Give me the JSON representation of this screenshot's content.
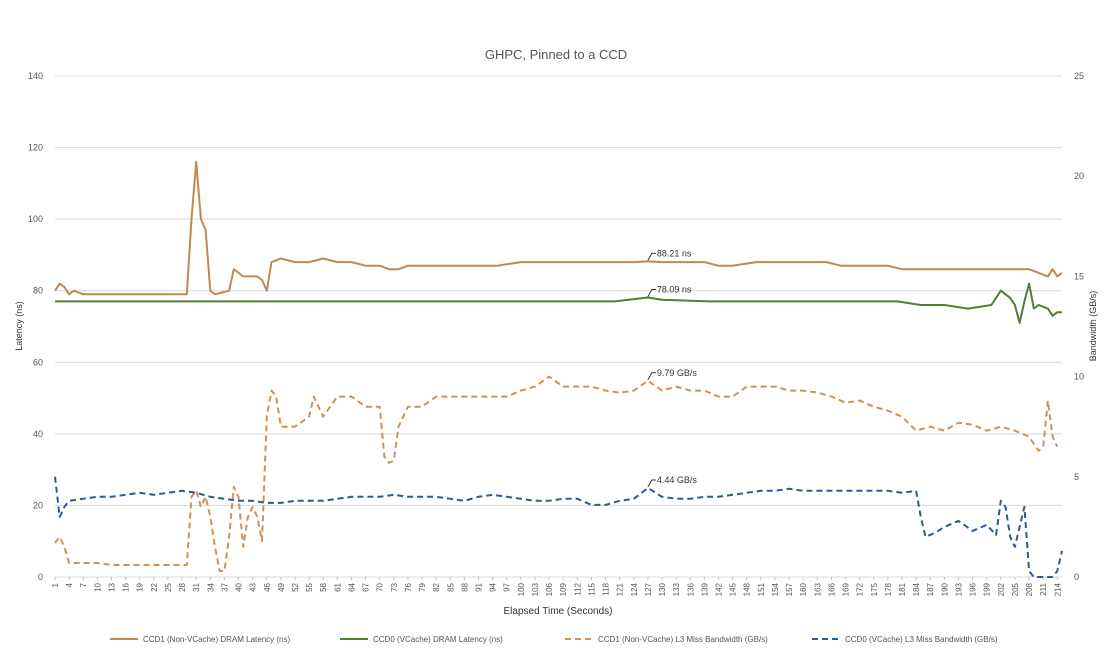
{
  "chart_data": {
    "type": "line",
    "title": "GHPC, Pinned to a CCD",
    "xlabel": "Elapsed Time (Seconds)",
    "ylabel": "Latency (ns)",
    "y2label": "Bandwidth (GB/s)",
    "ylim": [
      0,
      140
    ],
    "yticks": [
      0,
      20,
      40,
      60,
      80,
      100,
      120,
      140
    ],
    "y2lim": [
      0,
      25
    ],
    "y2ticks": [
      0,
      5,
      10,
      15,
      20,
      25
    ],
    "xlim": [
      1,
      215
    ],
    "x_tick_labels": [
      "1",
      "4",
      "7",
      "10",
      "13",
      "16",
      "19",
      "22",
      "25",
      "28",
      "31",
      "34",
      "37",
      "40",
      "43",
      "46",
      "49",
      "52",
      "55",
      "58",
      "61",
      "64",
      "67",
      "70",
      "73",
      "76",
      "79",
      "82",
      "85",
      "88",
      "91",
      "94",
      "97",
      "100",
      "103",
      "106",
      "109",
      "112",
      "115",
      "118",
      "121",
      "124",
      "127",
      "130",
      "133",
      "136",
      "139",
      "142",
      "145",
      "148",
      "151",
      "154",
      "157",
      "160",
      "163",
      "166",
      "169",
      "172",
      "175",
      "178",
      "181",
      "184",
      "187",
      "190",
      "193",
      "196",
      "199",
      "202",
      "205",
      "208",
      "211",
      "214"
    ],
    "grid": true,
    "legend_position": "bottom",
    "series": [
      {
        "name": "CCD1 (Non-VCache) DRAM Latency (ns)",
        "axis": "left",
        "color": "#c0894f",
        "dash": false,
        "points": [
          [
            1,
            80
          ],
          [
            2,
            82
          ],
          [
            3,
            81
          ],
          [
            4,
            79
          ],
          [
            5,
            80
          ],
          [
            7,
            79
          ],
          [
            10,
            79
          ],
          [
            13,
            79
          ],
          [
            16,
            79
          ],
          [
            19,
            79
          ],
          [
            22,
            79
          ],
          [
            25,
            79
          ],
          [
            28,
            79
          ],
          [
            29,
            79
          ],
          [
            30,
            100
          ],
          [
            31,
            116
          ],
          [
            32,
            100
          ],
          [
            33,
            97
          ],
          [
            34,
            80
          ],
          [
            35,
            79
          ],
          [
            38,
            80
          ],
          [
            39,
            86
          ],
          [
            41,
            84
          ],
          [
            44,
            84
          ],
          [
            45,
            83
          ],
          [
            46,
            80
          ],
          [
            47,
            88
          ],
          [
            49,
            89
          ],
          [
            52,
            88
          ],
          [
            55,
            88
          ],
          [
            58,
            89
          ],
          [
            61,
            88
          ],
          [
            64,
            88
          ],
          [
            67,
            87
          ],
          [
            70,
            87
          ],
          [
            72,
            86
          ],
          [
            74,
            86
          ],
          [
            76,
            87
          ],
          [
            80,
            87
          ],
          [
            85,
            87
          ],
          [
            90,
            87
          ],
          [
            95,
            87
          ],
          [
            100,
            88
          ],
          [
            105,
            88
          ],
          [
            110,
            88
          ],
          [
            115,
            88
          ],
          [
            120,
            88
          ],
          [
            124,
            88
          ],
          [
            127,
            88.2
          ],
          [
            130,
            88
          ],
          [
            135,
            88
          ],
          [
            139,
            88
          ],
          [
            142,
            87
          ],
          [
            145,
            87
          ],
          [
            150,
            88
          ],
          [
            155,
            88
          ],
          [
            160,
            88
          ],
          [
            165,
            88
          ],
          [
            168,
            87
          ],
          [
            170,
            87
          ],
          [
            175,
            87
          ],
          [
            178,
            87
          ],
          [
            181,
            86
          ],
          [
            185,
            86
          ],
          [
            190,
            86
          ],
          [
            195,
            86
          ],
          [
            200,
            86
          ],
          [
            205,
            86
          ],
          [
            208,
            86
          ],
          [
            210,
            85
          ],
          [
            212,
            84
          ],
          [
            213,
            86
          ],
          [
            214,
            84
          ],
          [
            215,
            85
          ]
        ]
      },
      {
        "name": "CCD0 (VCache) DRAM Latency (ns)",
        "axis": "left",
        "color": "#4e7f33",
        "dash": false,
        "points": [
          [
            1,
            77
          ],
          [
            10,
            77
          ],
          [
            20,
            77
          ],
          [
            30,
            77
          ],
          [
            40,
            77
          ],
          [
            50,
            77
          ],
          [
            60,
            77
          ],
          [
            70,
            77
          ],
          [
            80,
            77
          ],
          [
            90,
            77
          ],
          [
            100,
            77
          ],
          [
            110,
            77
          ],
          [
            120,
            77
          ],
          [
            127,
            78.1
          ],
          [
            130,
            77.5
          ],
          [
            140,
            77
          ],
          [
            150,
            77
          ],
          [
            160,
            77
          ],
          [
            170,
            77
          ],
          [
            180,
            77
          ],
          [
            185,
            76
          ],
          [
            190,
            76
          ],
          [
            195,
            75
          ],
          [
            200,
            76
          ],
          [
            202,
            80
          ],
          [
            204,
            78
          ],
          [
            205,
            76
          ],
          [
            206,
            71
          ],
          [
            207,
            77
          ],
          [
            208,
            82
          ],
          [
            209,
            75
          ],
          [
            210,
            76
          ],
          [
            212,
            75
          ],
          [
            213,
            73
          ],
          [
            214,
            74
          ],
          [
            215,
            74
          ]
        ]
      },
      {
        "name": "CCD1 (Non-VCache) L3 Miss Bandwidth (GB/s)",
        "axis": "right",
        "color": "#d09155",
        "dash": true,
        "points": [
          [
            1,
            1.7
          ],
          [
            2,
            2
          ],
          [
            3,
            1.5
          ],
          [
            4,
            0.7
          ],
          [
            7,
            0.7
          ],
          [
            10,
            0.7
          ],
          [
            13,
            0.6
          ],
          [
            16,
            0.6
          ],
          [
            19,
            0.6
          ],
          [
            22,
            0.6
          ],
          [
            25,
            0.6
          ],
          [
            28,
            0.6
          ],
          [
            29,
            0.6
          ],
          [
            30,
            4
          ],
          [
            31,
            4.3
          ],
          [
            32,
            3.5
          ],
          [
            33,
            4
          ],
          [
            34,
            3
          ],
          [
            35,
            1.5
          ],
          [
            36,
            0.3
          ],
          [
            37,
            0.3
          ],
          [
            38,
            2
          ],
          [
            39,
            4.5
          ],
          [
            40,
            4
          ],
          [
            41,
            1.5
          ],
          [
            42,
            3
          ],
          [
            43,
            3.5
          ],
          [
            44,
            3
          ],
          [
            45,
            1.8
          ],
          [
            46,
            8
          ],
          [
            47,
            9.3
          ],
          [
            48,
            9
          ],
          [
            49,
            7.5
          ],
          [
            52,
            7.5
          ],
          [
            55,
            8
          ],
          [
            56,
            9
          ],
          [
            58,
            8
          ],
          [
            61,
            9
          ],
          [
            64,
            9
          ],
          [
            67,
            8.5
          ],
          [
            70,
            8.5
          ],
          [
            71,
            6
          ],
          [
            72,
            5.7
          ],
          [
            73,
            5.8
          ],
          [
            74,
            7.5
          ],
          [
            76,
            8.5
          ],
          [
            79,
            8.5
          ],
          [
            82,
            9
          ],
          [
            85,
            9
          ],
          [
            88,
            9
          ],
          [
            91,
            9
          ],
          [
            94,
            9
          ],
          [
            97,
            9
          ],
          [
            100,
            9.3
          ],
          [
            103,
            9.5
          ],
          [
            106,
            10
          ],
          [
            109,
            9.5
          ],
          [
            112,
            9.5
          ],
          [
            115,
            9.5
          ],
          [
            118,
            9.3
          ],
          [
            121,
            9.2
          ],
          [
            124,
            9.3
          ],
          [
            127,
            9.79
          ],
          [
            130,
            9.3
          ],
          [
            133,
            9.5
          ],
          [
            136,
            9.3
          ],
          [
            139,
            9.3
          ],
          [
            142,
            9
          ],
          [
            145,
            9
          ],
          [
            148,
            9.5
          ],
          [
            151,
            9.5
          ],
          [
            154,
            9.5
          ],
          [
            157,
            9.3
          ],
          [
            160,
            9.3
          ],
          [
            163,
            9.2
          ],
          [
            166,
            9
          ],
          [
            169,
            8.7
          ],
          [
            172,
            8.8
          ],
          [
            175,
            8.5
          ],
          [
            178,
            8.3
          ],
          [
            181,
            8
          ],
          [
            184,
            7.3
          ],
          [
            187,
            7.5
          ],
          [
            190,
            7.3
          ],
          [
            193,
            7.7
          ],
          [
            196,
            7.6
          ],
          [
            199,
            7.3
          ],
          [
            202,
            7.5
          ],
          [
            205,
            7.3
          ],
          [
            208,
            7
          ],
          [
            210,
            6.3
          ],
          [
            211,
            6.5
          ],
          [
            212,
            8.8
          ],
          [
            213,
            7
          ],
          [
            214,
            6.5
          ]
        ]
      },
      {
        "name": "CCD0 (VCache) L3 Miss Bandwidth (GB/s)",
        "axis": "right",
        "color": "#2e5a8e",
        "dash": true,
        "points": [
          [
            1,
            5
          ],
          [
            2,
            3
          ],
          [
            3,
            3.5
          ],
          [
            4,
            3.8
          ],
          [
            7,
            3.9
          ],
          [
            10,
            4
          ],
          [
            13,
            4
          ],
          [
            16,
            4.1
          ],
          [
            19,
            4.2
          ],
          [
            22,
            4.1
          ],
          [
            25,
            4.2
          ],
          [
            28,
            4.3
          ],
          [
            31,
            4.2
          ],
          [
            34,
            4
          ],
          [
            37,
            3.9
          ],
          [
            40,
            3.8
          ],
          [
            43,
            3.8
          ],
          [
            46,
            3.7
          ],
          [
            49,
            3.7
          ],
          [
            52,
            3.8
          ],
          [
            55,
            3.8
          ],
          [
            58,
            3.8
          ],
          [
            61,
            3.9
          ],
          [
            64,
            4
          ],
          [
            67,
            4
          ],
          [
            70,
            4
          ],
          [
            73,
            4.1
          ],
          [
            76,
            4
          ],
          [
            79,
            4
          ],
          [
            82,
            4
          ],
          [
            85,
            3.9
          ],
          [
            88,
            3.8
          ],
          [
            91,
            4
          ],
          [
            94,
            4.1
          ],
          [
            97,
            4
          ],
          [
            100,
            3.9
          ],
          [
            103,
            3.8
          ],
          [
            106,
            3.8
          ],
          [
            109,
            3.9
          ],
          [
            112,
            3.9
          ],
          [
            115,
            3.6
          ],
          [
            118,
            3.6
          ],
          [
            121,
            3.8
          ],
          [
            124,
            3.9
          ],
          [
            127,
            4.44
          ],
          [
            130,
            4
          ],
          [
            133,
            3.9
          ],
          [
            136,
            3.9
          ],
          [
            139,
            4
          ],
          [
            142,
            4
          ],
          [
            145,
            4.1
          ],
          [
            148,
            4.2
          ],
          [
            151,
            4.3
          ],
          [
            154,
            4.3
          ],
          [
            157,
            4.4
          ],
          [
            160,
            4.3
          ],
          [
            163,
            4.3
          ],
          [
            166,
            4.3
          ],
          [
            169,
            4.3
          ],
          [
            172,
            4.3
          ],
          [
            175,
            4.3
          ],
          [
            178,
            4.3
          ],
          [
            181,
            4.2
          ],
          [
            184,
            4.3
          ],
          [
            185,
            3
          ],
          [
            186,
            2
          ],
          [
            188,
            2.2
          ],
          [
            190,
            2.5
          ],
          [
            193,
            2.8
          ],
          [
            196,
            2.3
          ],
          [
            199,
            2.6
          ],
          [
            201,
            2.1
          ],
          [
            202,
            3.8
          ],
          [
            203,
            3.5
          ],
          [
            204,
            2
          ],
          [
            205,
            1.5
          ],
          [
            206,
            2.5
          ],
          [
            207,
            3.5
          ],
          [
            208,
            0.3
          ],
          [
            209,
            0
          ],
          [
            211,
            0
          ],
          [
            213,
            0
          ],
          [
            214,
            0.3
          ],
          [
            215,
            1.3
          ]
        ]
      }
    ],
    "annotations": [
      {
        "text": "88.21 ns",
        "series": 0,
        "x": 127,
        "y": 88.21
      },
      {
        "text": "78.09 ns",
        "series": 1,
        "x": 127,
        "y": 78.09
      },
      {
        "text": "9.79 GB/s",
        "series": 2,
        "x": 127,
        "y": 9.79
      },
      {
        "text": "4.44 GB/s",
        "series": 3,
        "x": 127,
        "y": 4.44
      }
    ]
  }
}
